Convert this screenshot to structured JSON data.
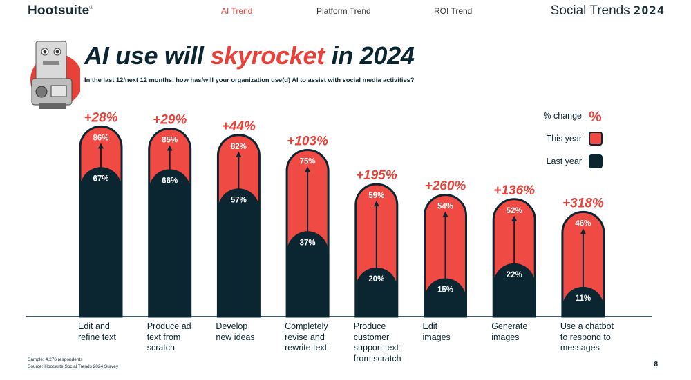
{
  "header": {
    "logo": "Hootsuite",
    "logo_mark": "®",
    "nav": [
      {
        "label": "AI Trend",
        "active": true
      },
      {
        "label": "Platform Trend",
        "active": false
      },
      {
        "label": "ROI Trend",
        "active": false
      }
    ],
    "brand_text": "Social Trends",
    "brand_year": "2024"
  },
  "title_parts": {
    "before": "AI use will ",
    "accent": "skyrocket",
    "after": " in 2024"
  },
  "subtitle": "In the last 12/next 12 months, how has/will your organization use(d) AI to assist with social media activities?",
  "legend": {
    "change_label": "% change",
    "change_symbol": "%",
    "this_year_label": "This year",
    "last_year_label": "Last year"
  },
  "colors": {
    "navy": "#0b2531",
    "red": "#f04a45",
    "accent": "#e8413a"
  },
  "chart_data": {
    "type": "bar",
    "categories": [
      "Edit and refine text",
      "Produce ad text from scratch",
      "Develop new ideas",
      "Completely revise and rewrite text",
      "Produce customer support text from scratch",
      "Edit images",
      "Generate images",
      "Use a chatbot to respond to messages"
    ],
    "category_lines": [
      [
        "Edit and",
        "refine text"
      ],
      [
        "Produce ad",
        "text from",
        "scratch"
      ],
      [
        "Develop",
        "new ideas"
      ],
      [
        "Completely",
        "revise and",
        "rewrite text"
      ],
      [
        "Produce",
        "customer",
        "support text",
        "from scratch"
      ],
      [
        "Edit",
        "images"
      ],
      [
        "Generate",
        "images"
      ],
      [
        "Use a chatbot",
        "to respond to",
        "messages"
      ]
    ],
    "series": [
      {
        "name": "Last year",
        "values": [
          67,
          66,
          57,
          37,
          20,
          15,
          22,
          11
        ],
        "labels": [
          "67%",
          "66%",
          "57%",
          "37%",
          "20%",
          "15%",
          "22%",
          "11%"
        ]
      },
      {
        "name": "This year",
        "values": [
          86,
          85,
          82,
          75,
          59,
          54,
          52,
          46
        ],
        "labels": [
          "86%",
          "85%",
          "82%",
          "75%",
          "59%",
          "54%",
          "52%",
          "46%"
        ]
      }
    ],
    "pct_change": [
      "+28%",
      "+29%",
      "+44%",
      "+103%",
      "+195%",
      "+260%",
      "+136%",
      "+318%"
    ],
    "ylim": [
      0,
      100
    ],
    "legend": "top-right"
  },
  "footer": {
    "sample": "Sample: 4,276 respondents",
    "source": "Source: Hootsuite Social Trends 2024 Survey",
    "page": "8"
  }
}
